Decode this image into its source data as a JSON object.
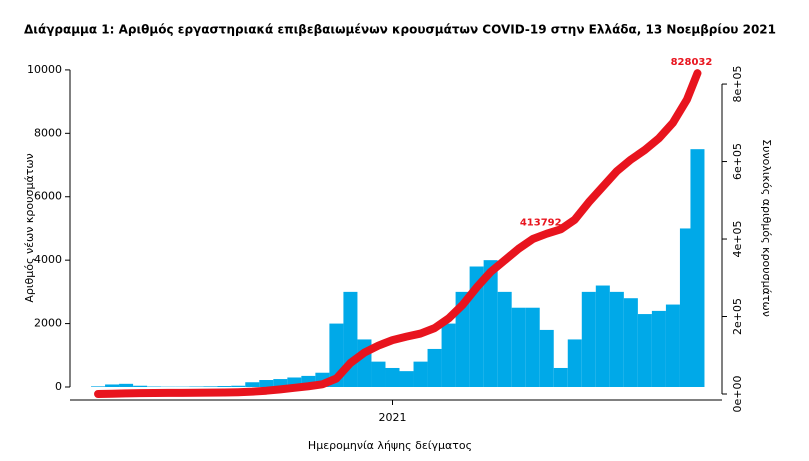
{
  "chart_data": {
    "type": "combo",
    "title": "Διάγραμμα 1: Αριθμός εργαστηριακά επιβεβαιωμένων κρουσμάτων COVID-19 στην Ελλάδα, 13 Νοεμβρίου 2021",
    "xlabel": "Ημερομηνία λήψης δείγματος",
    "ylabel": "Αριθμός νέων κρουσμάτων",
    "y2label": "Συνολικός αριθμός κρουσμάτων",
    "x": [
      2020.16,
      2020.2,
      2020.24,
      2020.28,
      2020.32,
      2020.36,
      2020.4,
      2020.44,
      2020.48,
      2020.52,
      2020.56,
      2020.6,
      2020.64,
      2020.68,
      2020.72,
      2020.76,
      2020.8,
      2020.84,
      2020.88,
      2020.92,
      2020.96,
      2021.0,
      2021.04,
      2021.08,
      2021.12,
      2021.16,
      2021.2,
      2021.24,
      2021.28,
      2021.32,
      2021.36,
      2021.4,
      2021.44,
      2021.48,
      2021.52,
      2021.56,
      2021.6,
      2021.64,
      2021.68,
      2021.72,
      2021.76,
      2021.8,
      2021.84,
      2021.87
    ],
    "series": [
      {
        "name": "Νέα κρούσματα",
        "type": "bar",
        "axis": "y",
        "color": "#00a9e8",
        "values": [
          20,
          80,
          100,
          40,
          15,
          10,
          10,
          15,
          20,
          30,
          40,
          150,
          220,
          250,
          300,
          350,
          450,
          2000,
          3000,
          1500,
          800,
          600,
          500,
          800,
          1200,
          2000,
          3000,
          3800,
          4000,
          3000,
          2500,
          2500,
          1800,
          600,
          1500,
          3000,
          3200,
          3000,
          2800,
          2300,
          2400,
          2600,
          5000,
          7500
        ]
      },
      {
        "name": "Συνολικά κρούσματα",
        "type": "line",
        "axis": "y2",
        "color": "#e8141e",
        "values": [
          100,
          500,
          1500,
          2300,
          2600,
          2800,
          3000,
          3200,
          3400,
          3700,
          4500,
          6000,
          8500,
          12000,
          16000,
          20000,
          25000,
          40000,
          80000,
          107000,
          125000,
          139000,
          148000,
          156000,
          170000,
          195000,
          230000,
          275000,
          315000,
          345000,
          375000,
          400000,
          413792,
          425000,
          450000,
          495000,
          535000,
          575000,
          605000,
          630000,
          660000,
          700000,
          760000,
          828032
        ]
      }
    ],
    "annotations": [
      {
        "x": 2021.44,
        "y": 413792
      },
      {
        "x": 2021.87,
        "y": 828032
      }
    ],
    "xlim": [
      2020.08,
      2021.94
    ],
    "xticks": [
      2021
    ],
    "ylim": [
      -410,
      10470
    ],
    "yticks": [
      0,
      2000,
      4000,
      6000,
      8000,
      10000
    ],
    "y2lim": [
      -15500,
      875000
    ],
    "y2ticks": [
      {
        "value": 0,
        "label": "0e+00"
      },
      {
        "value": 200000,
        "label": "2e+05"
      },
      {
        "value": 400000,
        "label": "4e+05"
      },
      {
        "value": 600000,
        "label": "6e+05"
      },
      {
        "value": 800000,
        "label": "8e+05"
      }
    ]
  }
}
